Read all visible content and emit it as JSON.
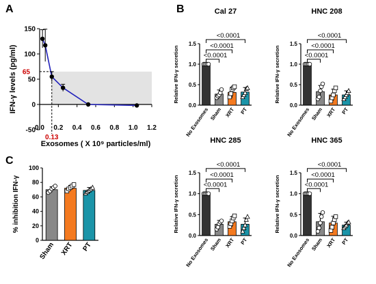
{
  "panels": {
    "A": {
      "letter": "A"
    },
    "B": {
      "letter": "B"
    },
    "C": {
      "letter": "C"
    }
  },
  "colors": {
    "no_exosomes": "#333333",
    "sham": "#888888",
    "xrt": "#f47a20",
    "pt": "#1b94a8",
    "curve": "#2222bb",
    "shade": "#e3e3e3",
    "annot": "#cc0000"
  },
  "chart_data": [
    {
      "id": "A",
      "type": "line",
      "title": "",
      "xlabel": "Exosomes ( X 10⁹ particles/ml)",
      "ylabel": "IFN-γ levels (pg/ml)",
      "xlim": [
        0,
        1.2
      ],
      "ylim": [
        -50,
        150
      ],
      "xticks": [
        "0.0",
        "0.2",
        "0.4",
        "0.6",
        "0.8",
        "1.0",
        "1.2"
      ],
      "yticks": [
        "-50",
        "0",
        "50",
        "100",
        "150"
      ],
      "x": [
        0.03,
        0.06,
        0.13,
        0.25,
        0.52,
        1.04
      ],
      "y": [
        130,
        117,
        55,
        33,
        0,
        -2
      ],
      "err": [
        18,
        32,
        10,
        7,
        0,
        2
      ],
      "threshold_y": 65,
      "threshold_label": "65",
      "ic_x": 0.13,
      "ic_label": "0.13",
      "grid": false
    },
    {
      "id": "B1",
      "type": "bar",
      "title": "Cal 27",
      "ylabel": "Relative IFN-γ secretion",
      "ylim": [
        0,
        1.5
      ],
      "yticks": [
        "0.0",
        "0.5",
        "1.0",
        "1.5"
      ],
      "categories": [
        "No Exosomes",
        "Sham",
        "XRT",
        "PT"
      ],
      "values": [
        1.0,
        0.27,
        0.31,
        0.32
      ],
      "errors": [
        0.0,
        0.1,
        0.13,
        0.11
      ],
      "points": [
        [
          1,
          1,
          1,
          1,
          1
        ],
        [
          0.18,
          0.22,
          0.25,
          0.3,
          0.38
        ],
        [
          0.2,
          0.28,
          0.38,
          0.42,
          0.45
        ],
        [
          0.2,
          0.25,
          0.3,
          0.4,
          0.42
        ]
      ],
      "comparisons": [
        "<0.0001",
        "<0.0001",
        "<0.0001"
      ]
    },
    {
      "id": "B2",
      "type": "bar",
      "title": "HNC 208",
      "ylabel": "Relative IFN-γ secretion",
      "ylim": [
        0,
        1.5
      ],
      "yticks": [
        "0.0",
        "0.5",
        "1.0",
        "1.5"
      ],
      "categories": [
        "No Exosomes",
        "Sham",
        "XRT",
        "PT"
      ],
      "values": [
        1.0,
        0.33,
        0.25,
        0.25
      ],
      "errors": [
        0.0,
        0.15,
        0.14,
        0.1
      ],
      "points": [
        [
          1,
          1,
          1,
          1,
          1
        ],
        [
          0.15,
          0.2,
          0.35,
          0.45,
          0.52
        ],
        [
          0.1,
          0.18,
          0.25,
          0.35,
          0.42
        ],
        [
          0.15,
          0.2,
          0.25,
          0.3,
          0.35
        ]
      ],
      "comparisons": [
        "<0.0001",
        "<0.0001",
        "<0.0001"
      ]
    },
    {
      "id": "B3",
      "type": "bar",
      "title": "HNC 285",
      "ylabel": "Relative IFN-γ secretion",
      "ylim": [
        0,
        1.5
      ],
      "yticks": [
        "0.0",
        "0.5",
        "1.0",
        "1.5"
      ],
      "categories": [
        "No Exosomes",
        "Sham",
        "XRT",
        "PT"
      ],
      "values": [
        1.0,
        0.27,
        0.33,
        0.27
      ],
      "errors": [
        0.0,
        0.09,
        0.12,
        0.15
      ],
      "points": [
        [
          1,
          1,
          1,
          1,
          1
        ],
        [
          0.15,
          0.2,
          0.28,
          0.32,
          0.35
        ],
        [
          0.22,
          0.28,
          0.35,
          0.42,
          0.47
        ],
        [
          0.1,
          0.18,
          0.25,
          0.38,
          0.45
        ]
      ],
      "comparisons": [
        "<0.0001",
        "<0.0001",
        "<0.0001"
      ]
    },
    {
      "id": "B4",
      "type": "bar",
      "title": "HNC 365",
      "ylabel": "Relative IFN-γ secretion",
      "ylim": [
        0,
        1.5
      ],
      "yticks": [
        "0.0",
        "0.5",
        "1.0",
        "1.5"
      ],
      "categories": [
        "No Exosomes",
        "Sham",
        "XRT",
        "PT"
      ],
      "values": [
        1.0,
        0.33,
        0.3,
        0.25
      ],
      "errors": [
        0.0,
        0.2,
        0.16,
        0.07
      ],
      "points": [
        [
          1,
          1,
          1,
          1,
          1
        ],
        [
          0.1,
          0.18,
          0.3,
          0.45,
          0.55
        ],
        [
          0.12,
          0.2,
          0.3,
          0.38,
          0.45
        ],
        [
          0.18,
          0.22,
          0.25,
          0.3,
          0.32
        ]
      ],
      "comparisons": [
        "<0.0001",
        "<0.0001",
        "<0.0001"
      ]
    },
    {
      "id": "C",
      "type": "bar",
      "title": "",
      "ylabel": "% inhibition IFN-γ",
      "ylim": [
        0,
        100
      ],
      "yticks": [
        "0",
        "20",
        "40",
        "60",
        "80",
        "100"
      ],
      "categories": [
        "Sham",
        "XRT",
        "PT"
      ],
      "values": [
        70,
        72,
        69
      ],
      "errors": [
        4,
        4,
        4
      ],
      "points": [
        [
          66,
          68,
          71,
          73,
          75
        ],
        [
          68,
          71,
          73,
          75,
          77
        ],
        [
          65,
          67,
          69,
          71,
          73
        ]
      ]
    }
  ]
}
